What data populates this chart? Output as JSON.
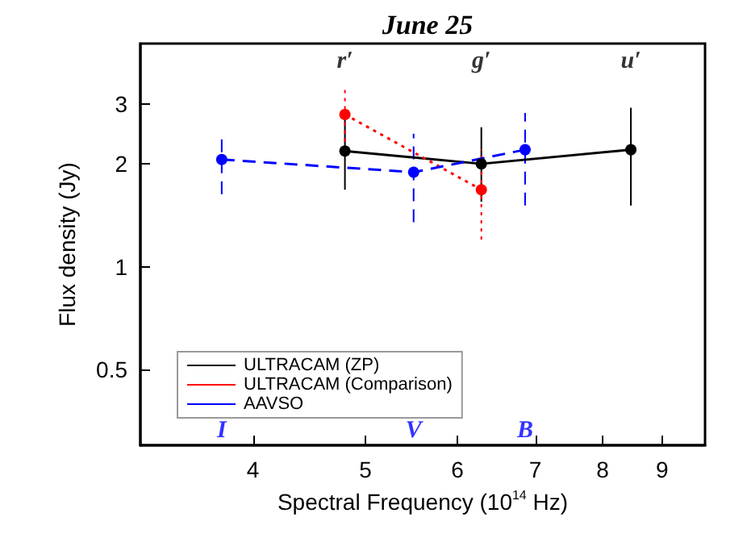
{
  "chart_data": {
    "type": "line",
    "title": "June 25",
    "xlabel": "Spectral Frequency (10$^{14}$ Hz)",
    "ylabel": "Flux density (Jy)",
    "log": "xy",
    "xlim": [
      3.2,
      9.8
    ],
    "ylim": [
      0.3,
      4.5
    ],
    "xticks": [
      4,
      5,
      6,
      7,
      8,
      9
    ],
    "yticks": [
      0.5,
      1,
      2,
      3
    ],
    "grid": false,
    "legend": "bottom left",
    "marker": "circle",
    "series": [
      {
        "name": "ULTRACAM (ZP)",
        "color": "#000000",
        "line_style": "solid",
        "x": [
          4.8,
          6.29,
          8.46
        ],
        "values": [
          2.18,
          2.0,
          2.2
        ],
        "errors": [
          [
            1.68,
            2.7
          ],
          [
            1.55,
            2.56
          ],
          [
            1.51,
            2.92
          ]
        ]
      },
      {
        "name": "ULTRACAM (Comparison)",
        "color": "#ff0000",
        "line_style": "dotted",
        "x": [
          4.8,
          6.29
        ],
        "values": [
          2.79,
          1.68
        ],
        "errors": [
          [
            2.2,
            3.35
          ],
          [
            1.2,
            2.2
          ]
        ]
      },
      {
        "name": "AAVSO",
        "color": "#0000ff",
        "line_style": "dashed",
        "x": [
          3.76,
          5.5,
          6.86
        ],
        "values": [
          2.06,
          1.89,
          2.2
        ],
        "errors": [
          [
            1.63,
            2.43
          ],
          [
            1.35,
            2.45
          ],
          [
            1.51,
            2.82
          ]
        ]
      }
    ],
    "annotations": [
      "r′",
      "g′",
      "u′",
      "I",
      "V",
      "B"
    ]
  }
}
